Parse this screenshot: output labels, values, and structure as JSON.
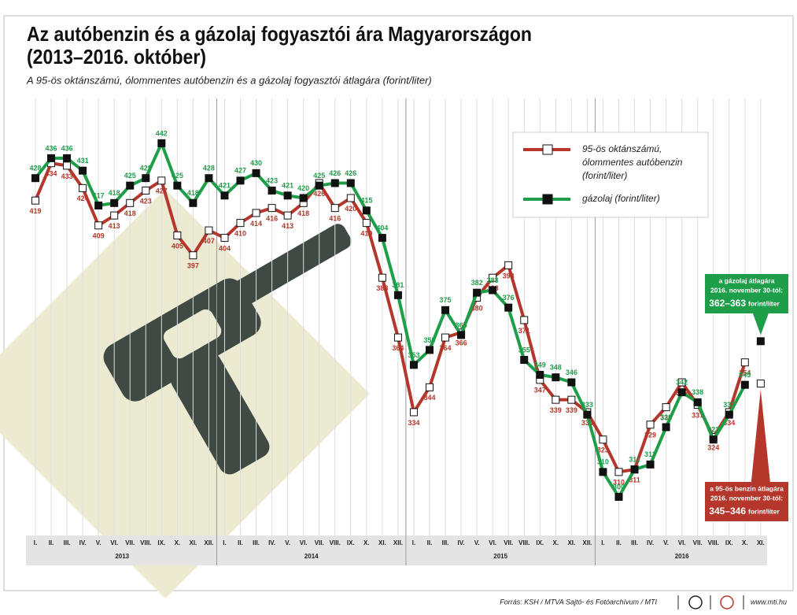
{
  "chart_data": {
    "type": "line",
    "title": [
      "Az autóbenzin és a gázolaj fogyasztói ára Magyarországon",
      "(2013–2016. október)"
    ],
    "subtitle": "A 95-ös oktánszámú, ólommentes autóbenzin és a gázolaj fogyasztói átlagára (forint/liter)",
    "categories": [
      "I.",
      "II.",
      "III.",
      "IV.",
      "V.",
      "VI.",
      "VII.",
      "VIII.",
      "IX.",
      "X.",
      "XI.",
      "XII.",
      "I.",
      "II.",
      "III.",
      "IV.",
      "V.",
      "VI.",
      "VII.",
      "VIII.",
      "IX.",
      "X.",
      "XI.",
      "XII.",
      "I.",
      "II.",
      "III.",
      "IV.",
      "V.",
      "VI.",
      "VII.",
      "VIII.",
      "IX.",
      "X.",
      "XI.",
      "XII.",
      "I.",
      "II.",
      "III.",
      "IV.",
      "V.",
      "VI.",
      "VII.",
      "VIII.",
      "IX.",
      "X.",
      "XI."
    ],
    "x_groups": [
      "2013",
      "2014",
      "2015",
      "2016"
    ],
    "ylim": [
      284.5,
      460
    ],
    "series": [
      {
        "name": [
          "95-ös oktánszámú,",
          "ólommentes autóbenzin",
          "(forint/liter)"
        ],
        "color": "#b5362b",
        "marker_fill": "#ffffff",
        "label_side": "below",
        "values": [
          419,
          434,
          433,
          424,
          409,
          413,
          418,
          423,
          427,
          405,
          397,
          407,
          404,
          410,
          414,
          416,
          413,
          418,
          426,
          416,
          420,
          410,
          388,
          364,
          334,
          344,
          364,
          366,
          380,
          388,
          393,
          371,
          347,
          339,
          339,
          334,
          323,
          310,
          311,
          329,
          336,
          346,
          337,
          324,
          334,
          354,
          null
        ],
        "annotation": {
          "lines": [
            "a 95-ös benzin átlagára",
            "2016. november 30-tól:"
          ],
          "value_text": "345–346",
          "unit": "forint/liter",
          "marker_value": 345.5
        }
      },
      {
        "name": [
          "gázolaj (forint/liter)"
        ],
        "color": "#1f9e4a",
        "marker_fill": "#111111",
        "label_side": "above",
        "values": [
          428,
          436,
          436,
          431,
          417,
          418,
          425,
          428,
          442,
          425,
          418,
          428,
          421,
          427,
          430,
          423,
          421,
          420,
          425,
          426,
          426,
          415,
          404,
          381,
          353,
          359,
          375,
          365,
          382,
          383,
          376,
          355,
          349,
          348,
          346,
          333,
          310,
          300,
          311,
          313,
          328,
          342,
          338,
          323,
          333,
          345,
          null
        ],
        "annotation": {
          "lines": [
            "a gázolaj átlagára",
            "2016. november 30-tól:"
          ],
          "value_text": "362–363",
          "unit": "forint/liter",
          "marker_value": 362.5
        }
      }
    ],
    "source": "Forrás: KSH / MTVA Sajtó- és Fotóarchívum / MTI",
    "website": "www.mti.hu"
  }
}
